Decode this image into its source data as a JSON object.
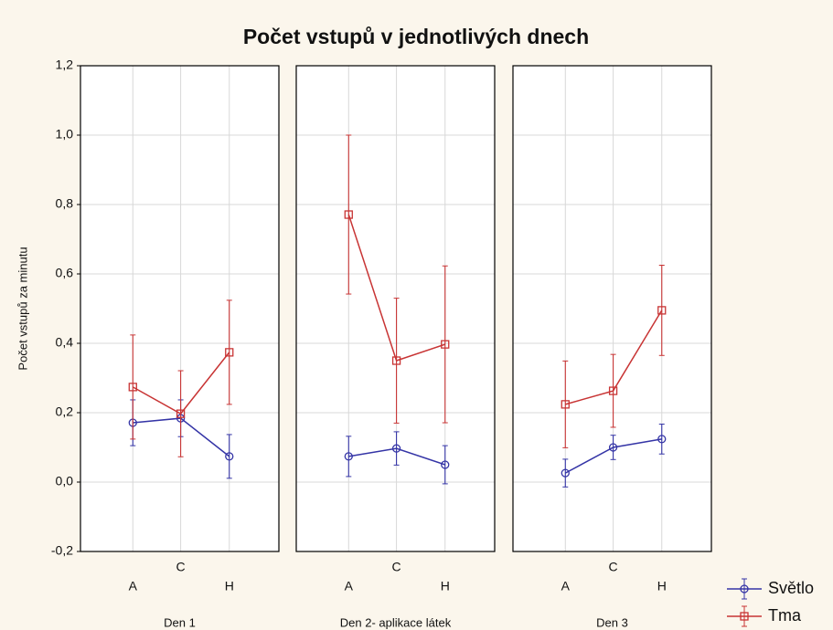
{
  "chart_data": {
    "type": "line",
    "title": "Počet vstupů v jednotlivých dnech",
    "y_label": "Počet vstupů za minutu",
    "ylim": [
      -0.2,
      1.2
    ],
    "yticks": [
      {
        "value": -0.2,
        "label": "-0,2"
      },
      {
        "value": 0,
        "label": "0,0"
      },
      {
        "value": 0.2,
        "label": "0,2"
      },
      {
        "value": 0.4,
        "label": "0,4"
      },
      {
        "value": 0.6,
        "label": "0,6"
      },
      {
        "value": 0.8,
        "label": "0,8"
      },
      {
        "value": 1.0,
        "label": "1,0"
      },
      {
        "value": 1.2,
        "label": "1,2"
      }
    ],
    "grid": true,
    "categories": [
      "A",
      "C",
      "H"
    ],
    "panels": [
      "Den 1",
      "Den 2- aplikace látek",
      "Den 3"
    ],
    "series": [
      {
        "name": "Světlo",
        "color": "#3434a6",
        "marker": "circle",
        "values": [
          [
            0.171,
            0.184,
            0.074
          ],
          [
            0.074,
            0.097,
            0.05
          ],
          [
            0.026,
            0.1,
            0.124
          ]
        ],
        "errors": [
          [
            0.066,
            0.053,
            0.063
          ],
          [
            0.058,
            0.048,
            0.055
          ],
          [
            0.04,
            0.035,
            0.043
          ]
        ]
      },
      {
        "name": "Tma",
        "color": "#c83434",
        "marker": "square",
        "values": [
          [
            0.274,
            0.197,
            0.374
          ],
          [
            0.771,
            0.35,
            0.397
          ],
          [
            0.224,
            0.263,
            0.495
          ]
        ],
        "errors": [
          [
            0.15,
            0.124,
            0.15
          ],
          [
            0.229,
            0.18,
            0.226
          ],
          [
            0.125,
            0.105,
            0.13
          ]
        ]
      }
    ]
  }
}
